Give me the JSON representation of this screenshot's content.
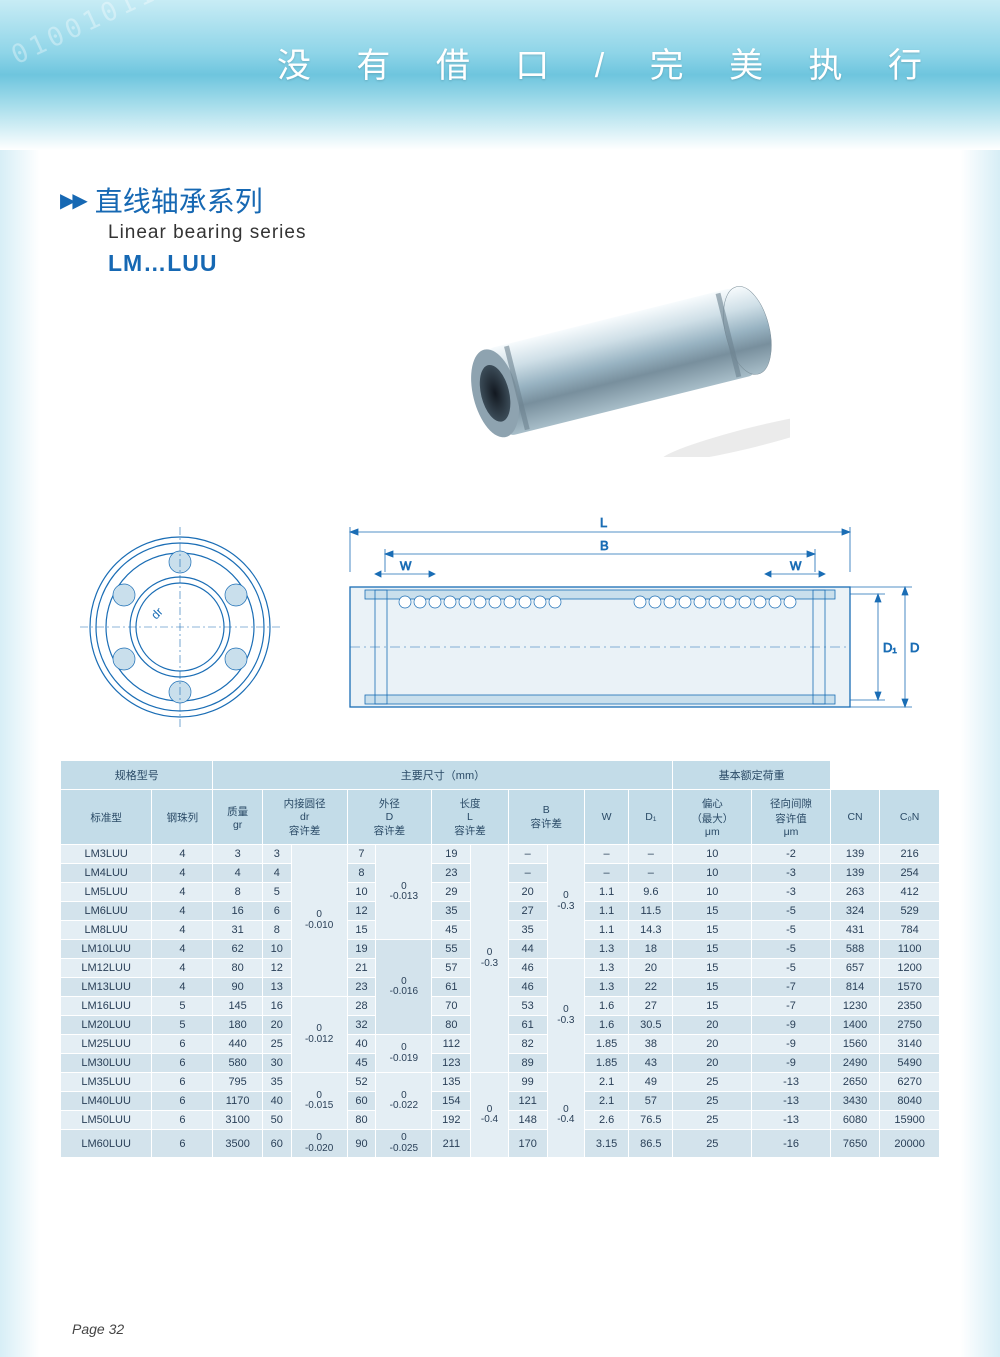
{
  "banner": {
    "text": "没 有 借 口  /  完 美 执 行",
    "digits": "010010110"
  },
  "series": {
    "arrows": "▶▶",
    "title_cn": "直线轴承系列",
    "title_en": "Linear bearing series",
    "model": "LM…LUU"
  },
  "diagram": {
    "labels": {
      "L": "L",
      "B": "B",
      "W": "W",
      "D": "D",
      "D1": "D₁",
      "dr": "dr"
    }
  },
  "table": {
    "head1": {
      "spec": "规格型号",
      "main": "主要尺寸（mm）",
      "load": "基本额定荷重"
    },
    "head2": {
      "std": "标准型",
      "ballrow": "钢珠列",
      "mass": "质量\ngr",
      "dr": "内接圆径\ndr\n容许差",
      "D": "外径\nD\n容许差",
      "L": "长度\nL\n容许差",
      "B": "B\n容许差",
      "W": "W",
      "D1": "D₁",
      "ecc": "偏心\n（最大）\nμm",
      "rad": "径向间隙\n容许值\nμm",
      "CN": "CN",
      "C0N": "C₀N"
    },
    "tol_dr": [
      "0\n-0.010",
      "0\n-0.012",
      "0\n-0.015",
      "0\n-0.020"
    ],
    "tol_D": [
      "0\n-0.013",
      "0\n-0.016",
      "0\n-0.019",
      "0\n-0.022",
      "0\n-0.025"
    ],
    "tol_L": [
      "0\n-0.3",
      "0\n-0.4"
    ],
    "tol_B": [
      "0\n-0.3",
      "0\n-0.3",
      "0\n-0.4"
    ],
    "rows": [
      {
        "std": "LM3LUU",
        "br": "4",
        "m": "3",
        "dr": "3",
        "D": "7",
        "L": "19",
        "B": "–",
        "W": "–",
        "D1": "–",
        "ecc": "10",
        "rad": "-2",
        "CN": "139",
        "C0N": "216"
      },
      {
        "std": "LM4LUU",
        "br": "4",
        "m": "4",
        "dr": "4",
        "D": "8",
        "L": "23",
        "B": "–",
        "W": "–",
        "D1": "–",
        "ecc": "10",
        "rad": "-3",
        "CN": "139",
        "C0N": "254"
      },
      {
        "std": "LM5LUU",
        "br": "4",
        "m": "8",
        "dr": "5",
        "D": "10",
        "L": "29",
        "B": "20",
        "W": "1.1",
        "D1": "9.6",
        "ecc": "10",
        "rad": "-3",
        "CN": "263",
        "C0N": "412"
      },
      {
        "std": "LM6LUU",
        "br": "4",
        "m": "16",
        "dr": "6",
        "D": "12",
        "L": "35",
        "B": "27",
        "W": "1.1",
        "D1": "11.5",
        "ecc": "15",
        "rad": "-5",
        "CN": "324",
        "C0N": "529"
      },
      {
        "std": "LM8LUU",
        "br": "4",
        "m": "31",
        "dr": "8",
        "D": "15",
        "L": "45",
        "B": "35",
        "W": "1.1",
        "D1": "14.3",
        "ecc": "15",
        "rad": "-5",
        "CN": "431",
        "C0N": "784"
      },
      {
        "std": "LM10LUU",
        "br": "4",
        "m": "62",
        "dr": "10",
        "D": "19",
        "L": "55",
        "B": "44",
        "W": "1.3",
        "D1": "18",
        "ecc": "15",
        "rad": "-5",
        "CN": "588",
        "C0N": "1100"
      },
      {
        "std": "LM12LUU",
        "br": "4",
        "m": "80",
        "dr": "12",
        "D": "21",
        "L": "57",
        "B": "46",
        "W": "1.3",
        "D1": "20",
        "ecc": "15",
        "rad": "-5",
        "CN": "657",
        "C0N": "1200"
      },
      {
        "std": "LM13LUU",
        "br": "4",
        "m": "90",
        "dr": "13",
        "D": "23",
        "L": "61",
        "B": "46",
        "W": "1.3",
        "D1": "22",
        "ecc": "15",
        "rad": "-7",
        "CN": "814",
        "C0N": "1570"
      },
      {
        "std": "LM16LUU",
        "br": "5",
        "m": "145",
        "dr": "16",
        "D": "28",
        "L": "70",
        "B": "53",
        "W": "1.6",
        "D1": "27",
        "ecc": "15",
        "rad": "-7",
        "CN": "1230",
        "C0N": "2350"
      },
      {
        "std": "LM20LUU",
        "br": "5",
        "m": "180",
        "dr": "20",
        "D": "32",
        "L": "80",
        "B": "61",
        "W": "1.6",
        "D1": "30.5",
        "ecc": "20",
        "rad": "-9",
        "CN": "1400",
        "C0N": "2750"
      },
      {
        "std": "LM25LUU",
        "br": "6",
        "m": "440",
        "dr": "25",
        "D": "40",
        "L": "112",
        "B": "82",
        "W": "1.85",
        "D1": "38",
        "ecc": "20",
        "rad": "-9",
        "CN": "1560",
        "C0N": "3140"
      },
      {
        "std": "LM30LUU",
        "br": "6",
        "m": "580",
        "dr": "30",
        "D": "45",
        "L": "123",
        "B": "89",
        "W": "1.85",
        "D1": "43",
        "ecc": "20",
        "rad": "-9",
        "CN": "2490",
        "C0N": "5490"
      },
      {
        "std": "LM35LUU",
        "br": "6",
        "m": "795",
        "dr": "35",
        "D": "52",
        "L": "135",
        "B": "99",
        "W": "2.1",
        "D1": "49",
        "ecc": "25",
        "rad": "-13",
        "CN": "2650",
        "C0N": "6270"
      },
      {
        "std": "LM40LUU",
        "br": "6",
        "m": "1170",
        "dr": "40",
        "D": "60",
        "L": "154",
        "B": "121",
        "W": "2.1",
        "D1": "57",
        "ecc": "25",
        "rad": "-13",
        "CN": "3430",
        "C0N": "8040"
      },
      {
        "std": "LM50LUU",
        "br": "6",
        "m": "3100",
        "dr": "50",
        "D": "80",
        "L": "192",
        "B": "148",
        "W": "2.6",
        "D1": "76.5",
        "ecc": "25",
        "rad": "-13",
        "CN": "6080",
        "C0N": "15900"
      },
      {
        "std": "LM60LUU",
        "br": "6",
        "m": "3500",
        "dr": "60",
        "D": "90",
        "L": "211",
        "B": "170",
        "W": "3.15",
        "D1": "86.5",
        "ecc": "25",
        "rad": "-16",
        "CN": "7650",
        "C0N": "20000"
      }
    ]
  },
  "page_label": "Page 32",
  "colors": {
    "brand_blue": "#1668b3",
    "diagram_blue": "#1a6db5",
    "header_bg": "#c3dce8",
    "row_odd": "#e4eef4",
    "row_even": "#d3e3ec"
  }
}
